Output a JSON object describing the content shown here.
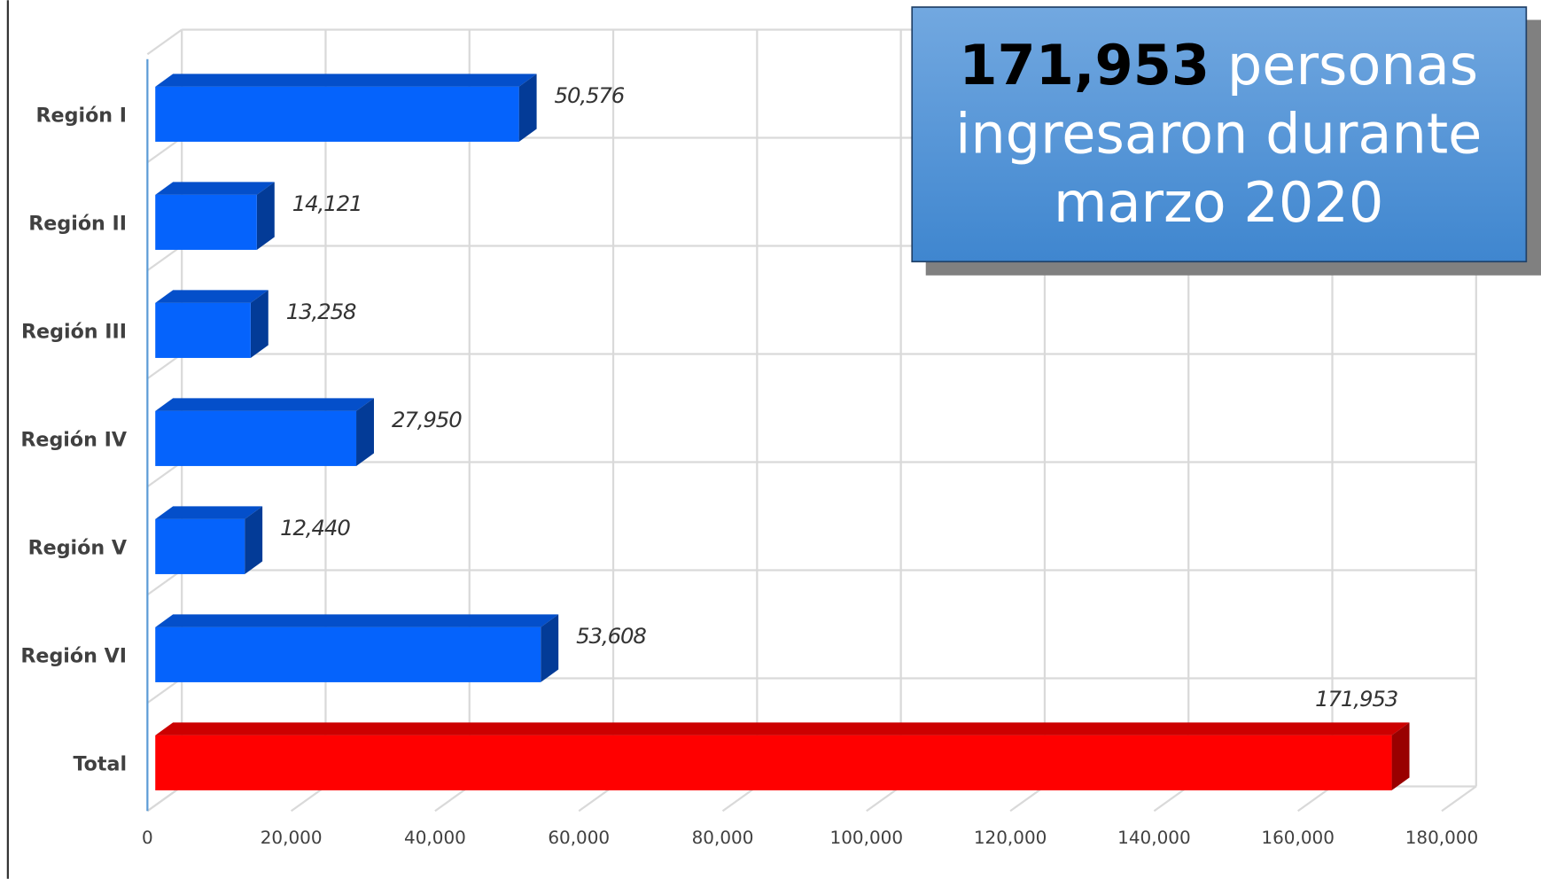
{
  "chart_data": {
    "type": "bar3d_horizontal",
    "categories": [
      "Región I",
      "Región II",
      "Región III",
      "Región IV",
      "Región V",
      "Región VI",
      "Total"
    ],
    "values": [
      50576,
      14121,
      13258,
      27950,
      12440,
      53608,
      171953
    ],
    "value_labels": [
      "50,576",
      "14,121",
      "13,258",
      "27,950",
      "12,440",
      "53,608",
      "171,953"
    ],
    "colors": [
      "#0563fc",
      "#0563fc",
      "#0563fc",
      "#0563fc",
      "#0563fc",
      "#0563fc",
      "#ff0000"
    ],
    "xlim": [
      0,
      180000
    ],
    "xticks": [
      0,
      {
        "value": 20000,
        "label": "20,000"
      },
      {
        "value": 40000,
        "label": "40,000"
      },
      {
        "value": 60000,
        "label": "60,000"
      },
      {
        "value": 80000,
        "label": "80,000"
      },
      {
        "value": 100000,
        "label": "100,000"
      },
      {
        "value": 120000,
        "label": "120,000"
      },
      {
        "value": 140000,
        "label": "140,000"
      },
      {
        "value": 160000,
        "label": "160,000"
      },
      {
        "value": 180000,
        "label": "180,000"
      }
    ],
    "grid": true,
    "annotation": {
      "bold": "171,953",
      "lines": [
        "personas",
        "ingresaron durante",
        "marzo 2020"
      ]
    }
  }
}
